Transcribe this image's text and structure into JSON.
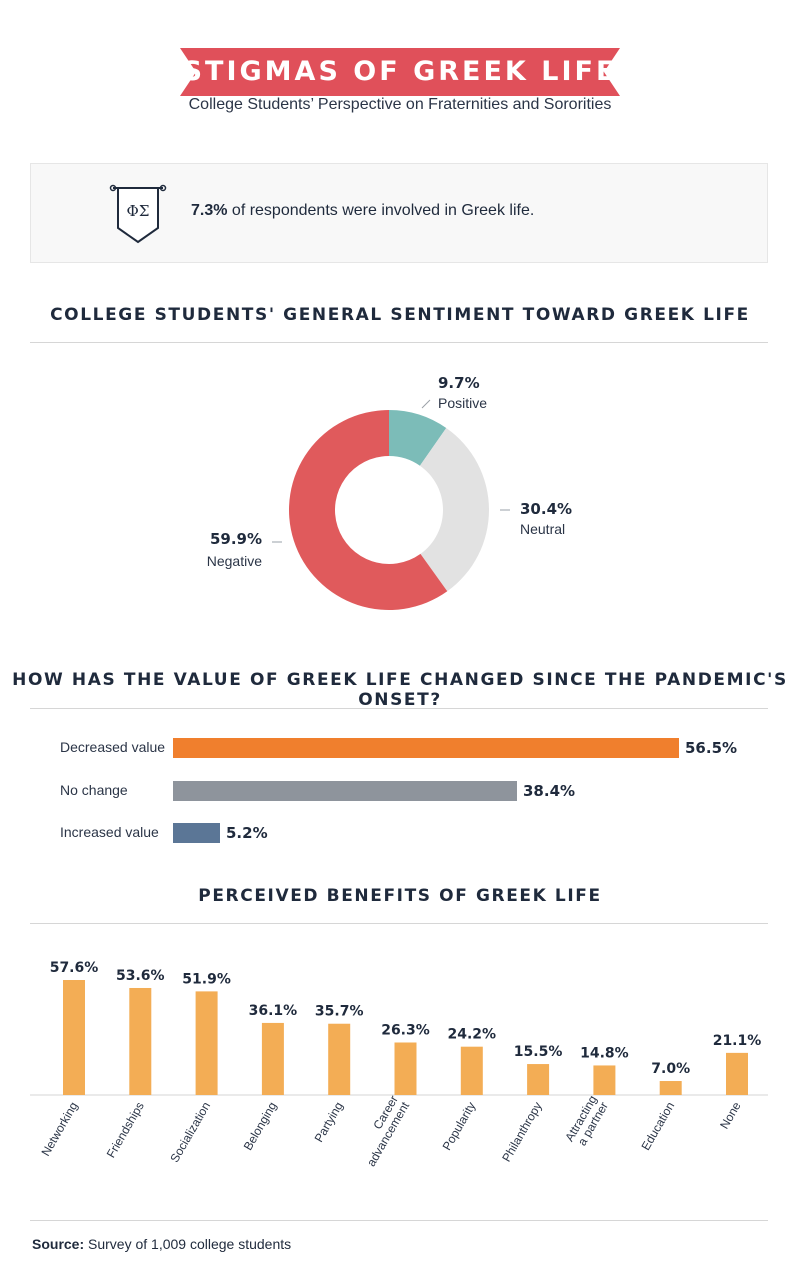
{
  "header": {
    "title": "STIGMAS OF GREEK LIFE",
    "subtitle": "College Students’ Perspective on Fraternities and Sororities"
  },
  "involvement": {
    "icon": "greek-letters-banner-icon",
    "icon_letters": "ΦΣ",
    "value": "7.3%",
    "text": " of respondents were involved in Greek life."
  },
  "colors": {
    "banner": "#e0505a",
    "positive": "#7cbcb8",
    "neutral": "#e2e2e2",
    "negative": "#e05a5c",
    "decreased": "#f07f2d",
    "no_change": "#8e949c",
    "increased": "#5b7696",
    "benefit": "#f3ad55"
  },
  "sentiment": {
    "title": "COLLEGE STUDENTS' GENERAL SENTIMENT TOWARD GREEK LIFE"
  },
  "pandemic": {
    "title": "HOW HAS THE VALUE OF GREEK LIFE CHANGED SINCE THE PANDEMIC'S ONSET?"
  },
  "benefits": {
    "title": "PERCEIVED BENEFITS OF GREEK LIFE"
  },
  "source": {
    "label": "Source:",
    "text": " Survey of 1,009 college students"
  },
  "chart_data": [
    {
      "type": "pie",
      "title": "COLLEGE STUDENTS' GENERAL SENTIMENT TOWARD GREEK LIFE",
      "categories": [
        "Positive",
        "Neutral",
        "Negative"
      ],
      "values": [
        9.7,
        30.4,
        59.9
      ],
      "value_labels": [
        "9.7%",
        "30.4%",
        "59.9%"
      ],
      "donut": true
    },
    {
      "type": "bar",
      "orientation": "horizontal",
      "title": "HOW HAS THE VALUE OF GREEK LIFE CHANGED SINCE THE PANDEMIC'S ONSET?",
      "categories": [
        "Decreased value",
        "No change",
        "Increased value"
      ],
      "values": [
        56.5,
        38.4,
        5.2
      ],
      "value_labels": [
        "56.5%",
        "38.4%",
        "5.2%"
      ]
    },
    {
      "type": "bar",
      "title": "PERCEIVED BENEFITS OF GREEK LIFE",
      "categories": [
        [
          "Networking"
        ],
        [
          "Friendships"
        ],
        [
          "Socialization"
        ],
        [
          "Belonging"
        ],
        [
          "Partying"
        ],
        [
          "Career",
          "advancement"
        ],
        [
          "Popularity"
        ],
        [
          "Philanthropy"
        ],
        [
          "Attracting",
          "a partner"
        ],
        [
          "Education"
        ],
        [
          "None"
        ]
      ],
      "values": [
        57.6,
        53.6,
        51.9,
        36.1,
        35.7,
        26.3,
        24.2,
        15.5,
        14.8,
        7.0,
        21.1
      ],
      "value_labels": [
        "57.6%",
        "53.6%",
        "51.9%",
        "36.1%",
        "35.7%",
        "26.3%",
        "24.2%",
        "15.5%",
        "14.8%",
        "7.0%",
        "21.1%"
      ]
    }
  ]
}
